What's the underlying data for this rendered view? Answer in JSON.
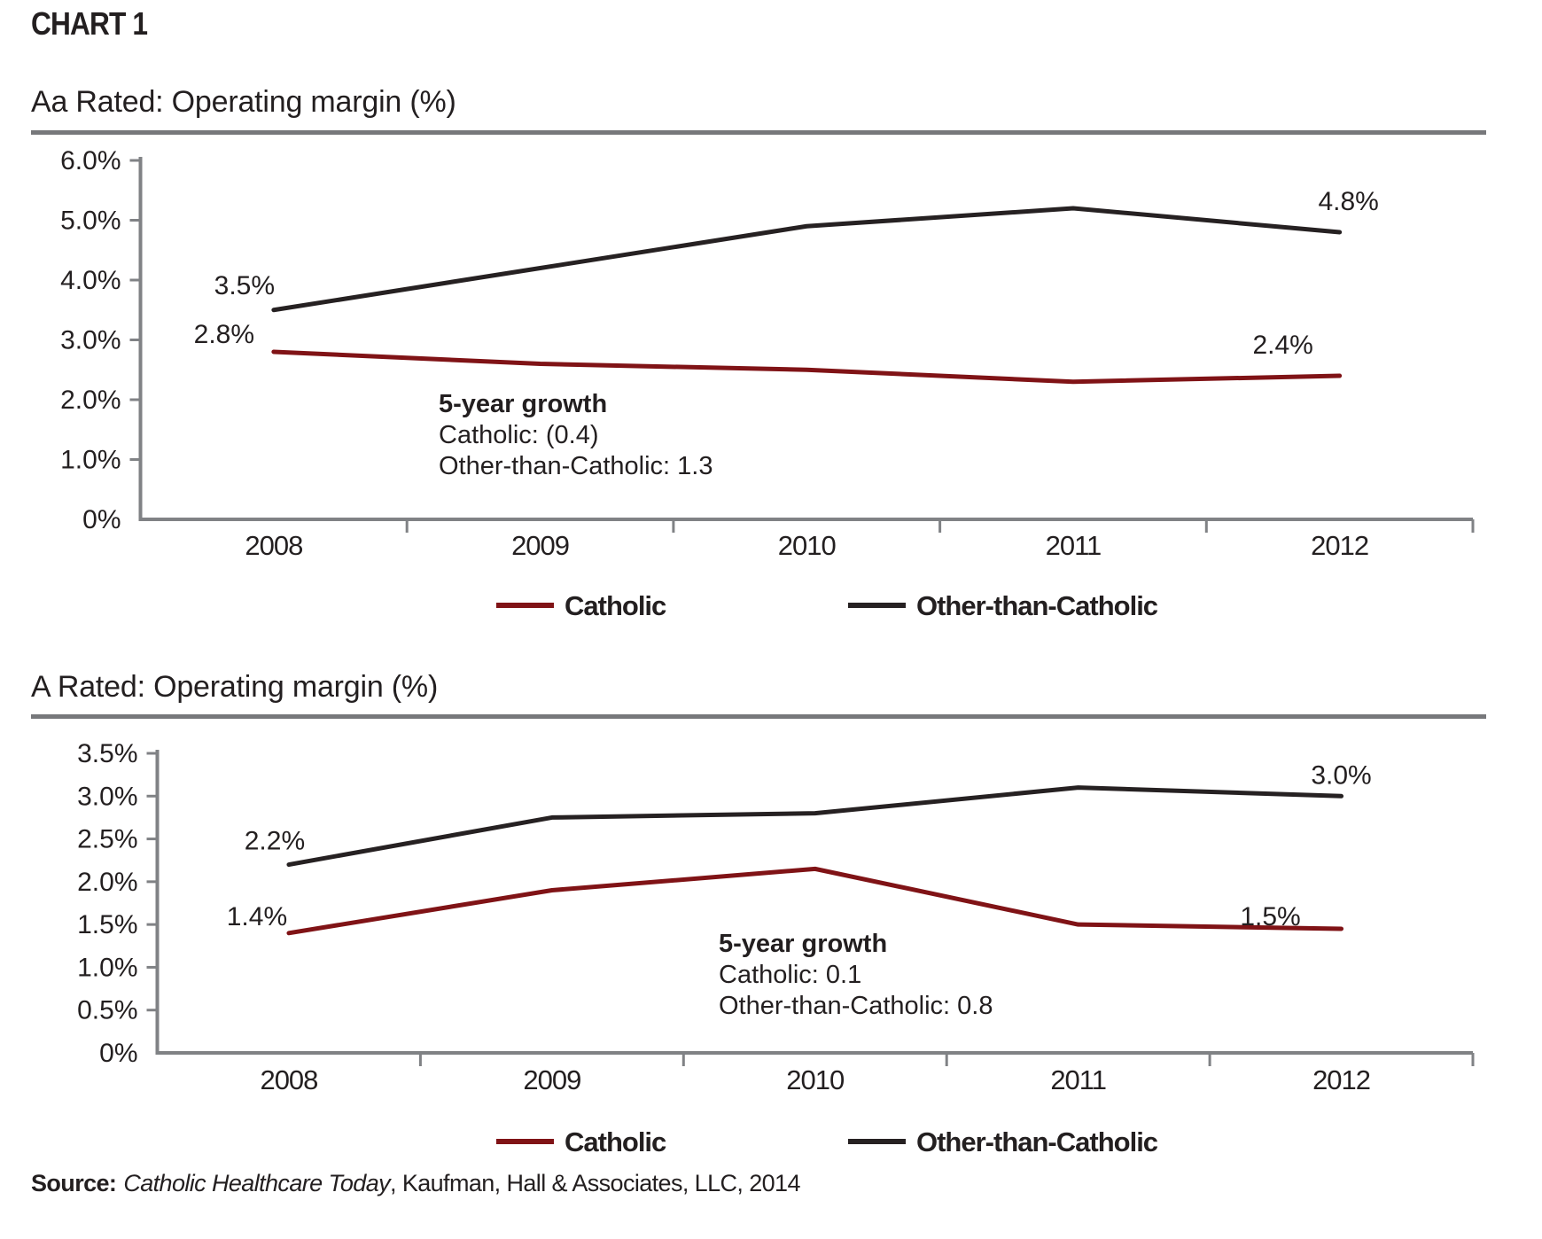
{
  "page": {
    "kicker": "CHART 1",
    "source": {
      "label": "Source:",
      "publication": "Catholic Healthcare Today",
      "rest": ", Kaufman, Hall & Associates, LLC, 2014"
    }
  },
  "colors": {
    "catholic": "#801316",
    "other": "#262122",
    "axis": "#808285",
    "rule": "#77787B",
    "text": "#231F20"
  },
  "chart_data": [
    {
      "type": "line",
      "title": "Aa Rated: Operating margin (%)",
      "categories": [
        "2008",
        "2009",
        "2010",
        "2011",
        "2012"
      ],
      "series": [
        {
          "name": "Catholic",
          "color_key": "catholic",
          "values": [
            2.8,
            2.6,
            2.5,
            2.3,
            2.4
          ]
        },
        {
          "name": "Other-than-Catholic",
          "color_key": "other",
          "values": [
            3.5,
            4.2,
            4.9,
            5.2,
            4.8
          ]
        }
      ],
      "ylim": [
        0,
        6
      ],
      "grid": false,
      "legend_position": "bottom",
      "yticks": [
        {
          "value": 6,
          "label": "6.0%"
        },
        {
          "value": 5,
          "label": "5.0%"
        },
        {
          "value": 4,
          "label": "4.0%"
        },
        {
          "value": 3,
          "label": "3.0%"
        },
        {
          "value": 2,
          "label": "2.0%"
        },
        {
          "value": 1,
          "label": "1.0%"
        },
        {
          "value": 0,
          "label": "0%"
        }
      ],
      "point_labels": [
        {
          "text": "3.5%",
          "series": 1,
          "index": 0
        },
        {
          "text": "2.8%",
          "series": 0,
          "index": 0
        },
        {
          "text": "4.8%",
          "series": 1,
          "index": 4
        },
        {
          "text": "2.4%",
          "series": 0,
          "index": 4
        }
      ],
      "annotation": {
        "title": "5-year growth",
        "lines": [
          "Catholic: (0.4)",
          "Other-than-Catholic: 1.3"
        ]
      },
      "legend": [
        "Catholic",
        "Other-than-Catholic"
      ]
    },
    {
      "type": "line",
      "title": "A Rated: Operating margin (%)",
      "categories": [
        "2008",
        "2009",
        "2010",
        "2011",
        "2012"
      ],
      "series": [
        {
          "name": "Catholic",
          "color_key": "catholic",
          "values": [
            1.4,
            1.9,
            2.15,
            1.5,
            1.45
          ]
        },
        {
          "name": "Other-than-Catholic",
          "color_key": "other",
          "values": [
            2.2,
            2.75,
            2.8,
            3.1,
            3.0
          ]
        }
      ],
      "ylim": [
        0,
        3.5
      ],
      "grid": false,
      "legend_position": "bottom",
      "yticks": [
        {
          "value": 3.5,
          "label": "3.5%"
        },
        {
          "value": 3.0,
          "label": "3.0%"
        },
        {
          "value": 2.5,
          "label": "2.5%"
        },
        {
          "value": 2.0,
          "label": "2.0%"
        },
        {
          "value": 1.5,
          "label": "1.5%"
        },
        {
          "value": 1.0,
          "label": "1.0%"
        },
        {
          "value": 0.5,
          "label": "0.5%"
        },
        {
          "value": 0,
          "label": "0%"
        }
      ],
      "point_labels": [
        {
          "text": "2.2%",
          "series": 1,
          "index": 0
        },
        {
          "text": "1.4%",
          "series": 0,
          "index": 0
        },
        {
          "text": "3.0%",
          "series": 1,
          "index": 4
        },
        {
          "text": "1.5%",
          "series": 0,
          "index": 4
        }
      ],
      "annotation": {
        "title": "5-year growth",
        "lines": [
          "Catholic: 0.1",
          "Other-than-Catholic: 0.8"
        ]
      },
      "legend": [
        "Catholic",
        "Other-than-Catholic"
      ]
    }
  ]
}
